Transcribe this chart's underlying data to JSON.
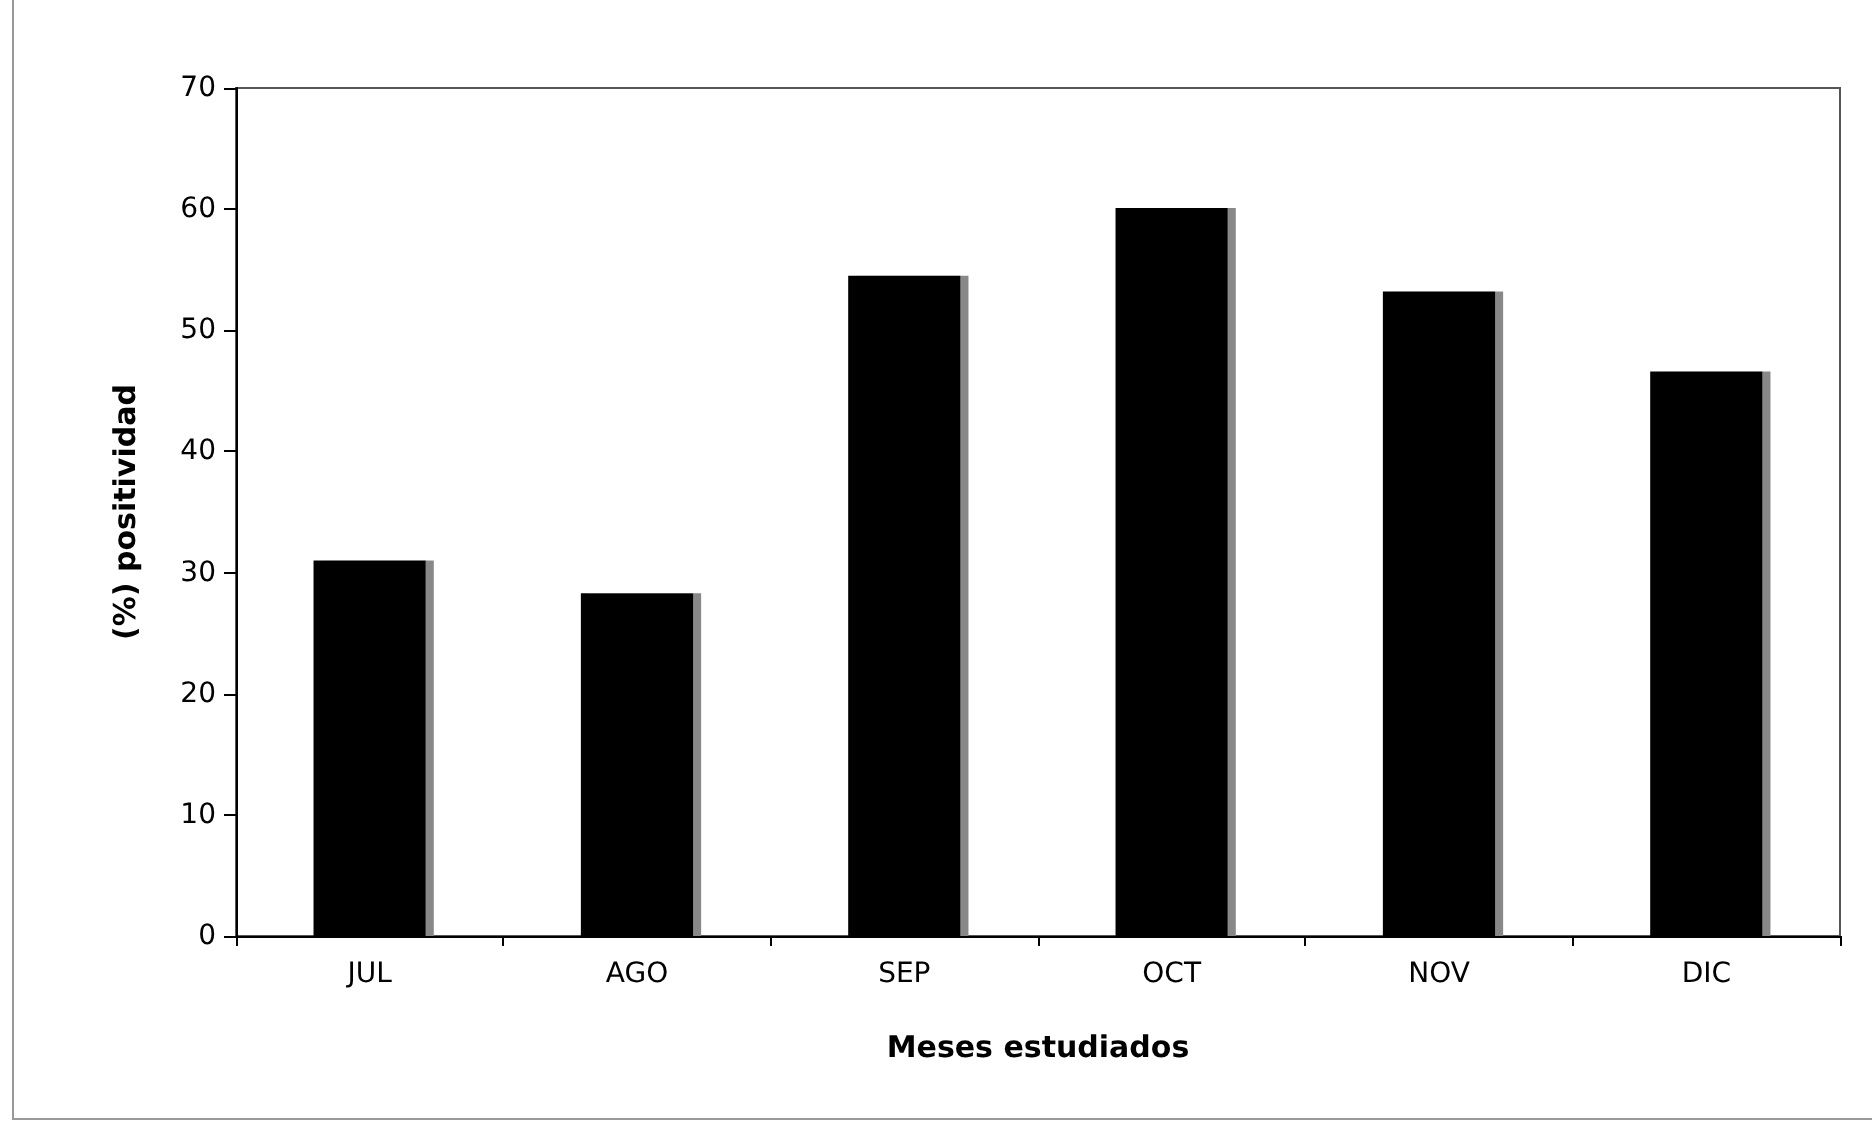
{
  "chart_data": {
    "type": "bar",
    "xlabel": "Meses estudiados",
    "ylabel": "(%) positividad",
    "categories": [
      "JUL",
      "AGO",
      "SEP",
      "OCT",
      "NOV",
      "DIC"
    ],
    "values": [
      31,
      28.3,
      54.5,
      60.1,
      53.2,
      46.6
    ],
    "color": "#000000",
    "ylim": [
      0,
      70
    ],
    "yticks": [
      0,
      10,
      20,
      30,
      40,
      50,
      60,
      70
    ],
    "grid": false
  }
}
